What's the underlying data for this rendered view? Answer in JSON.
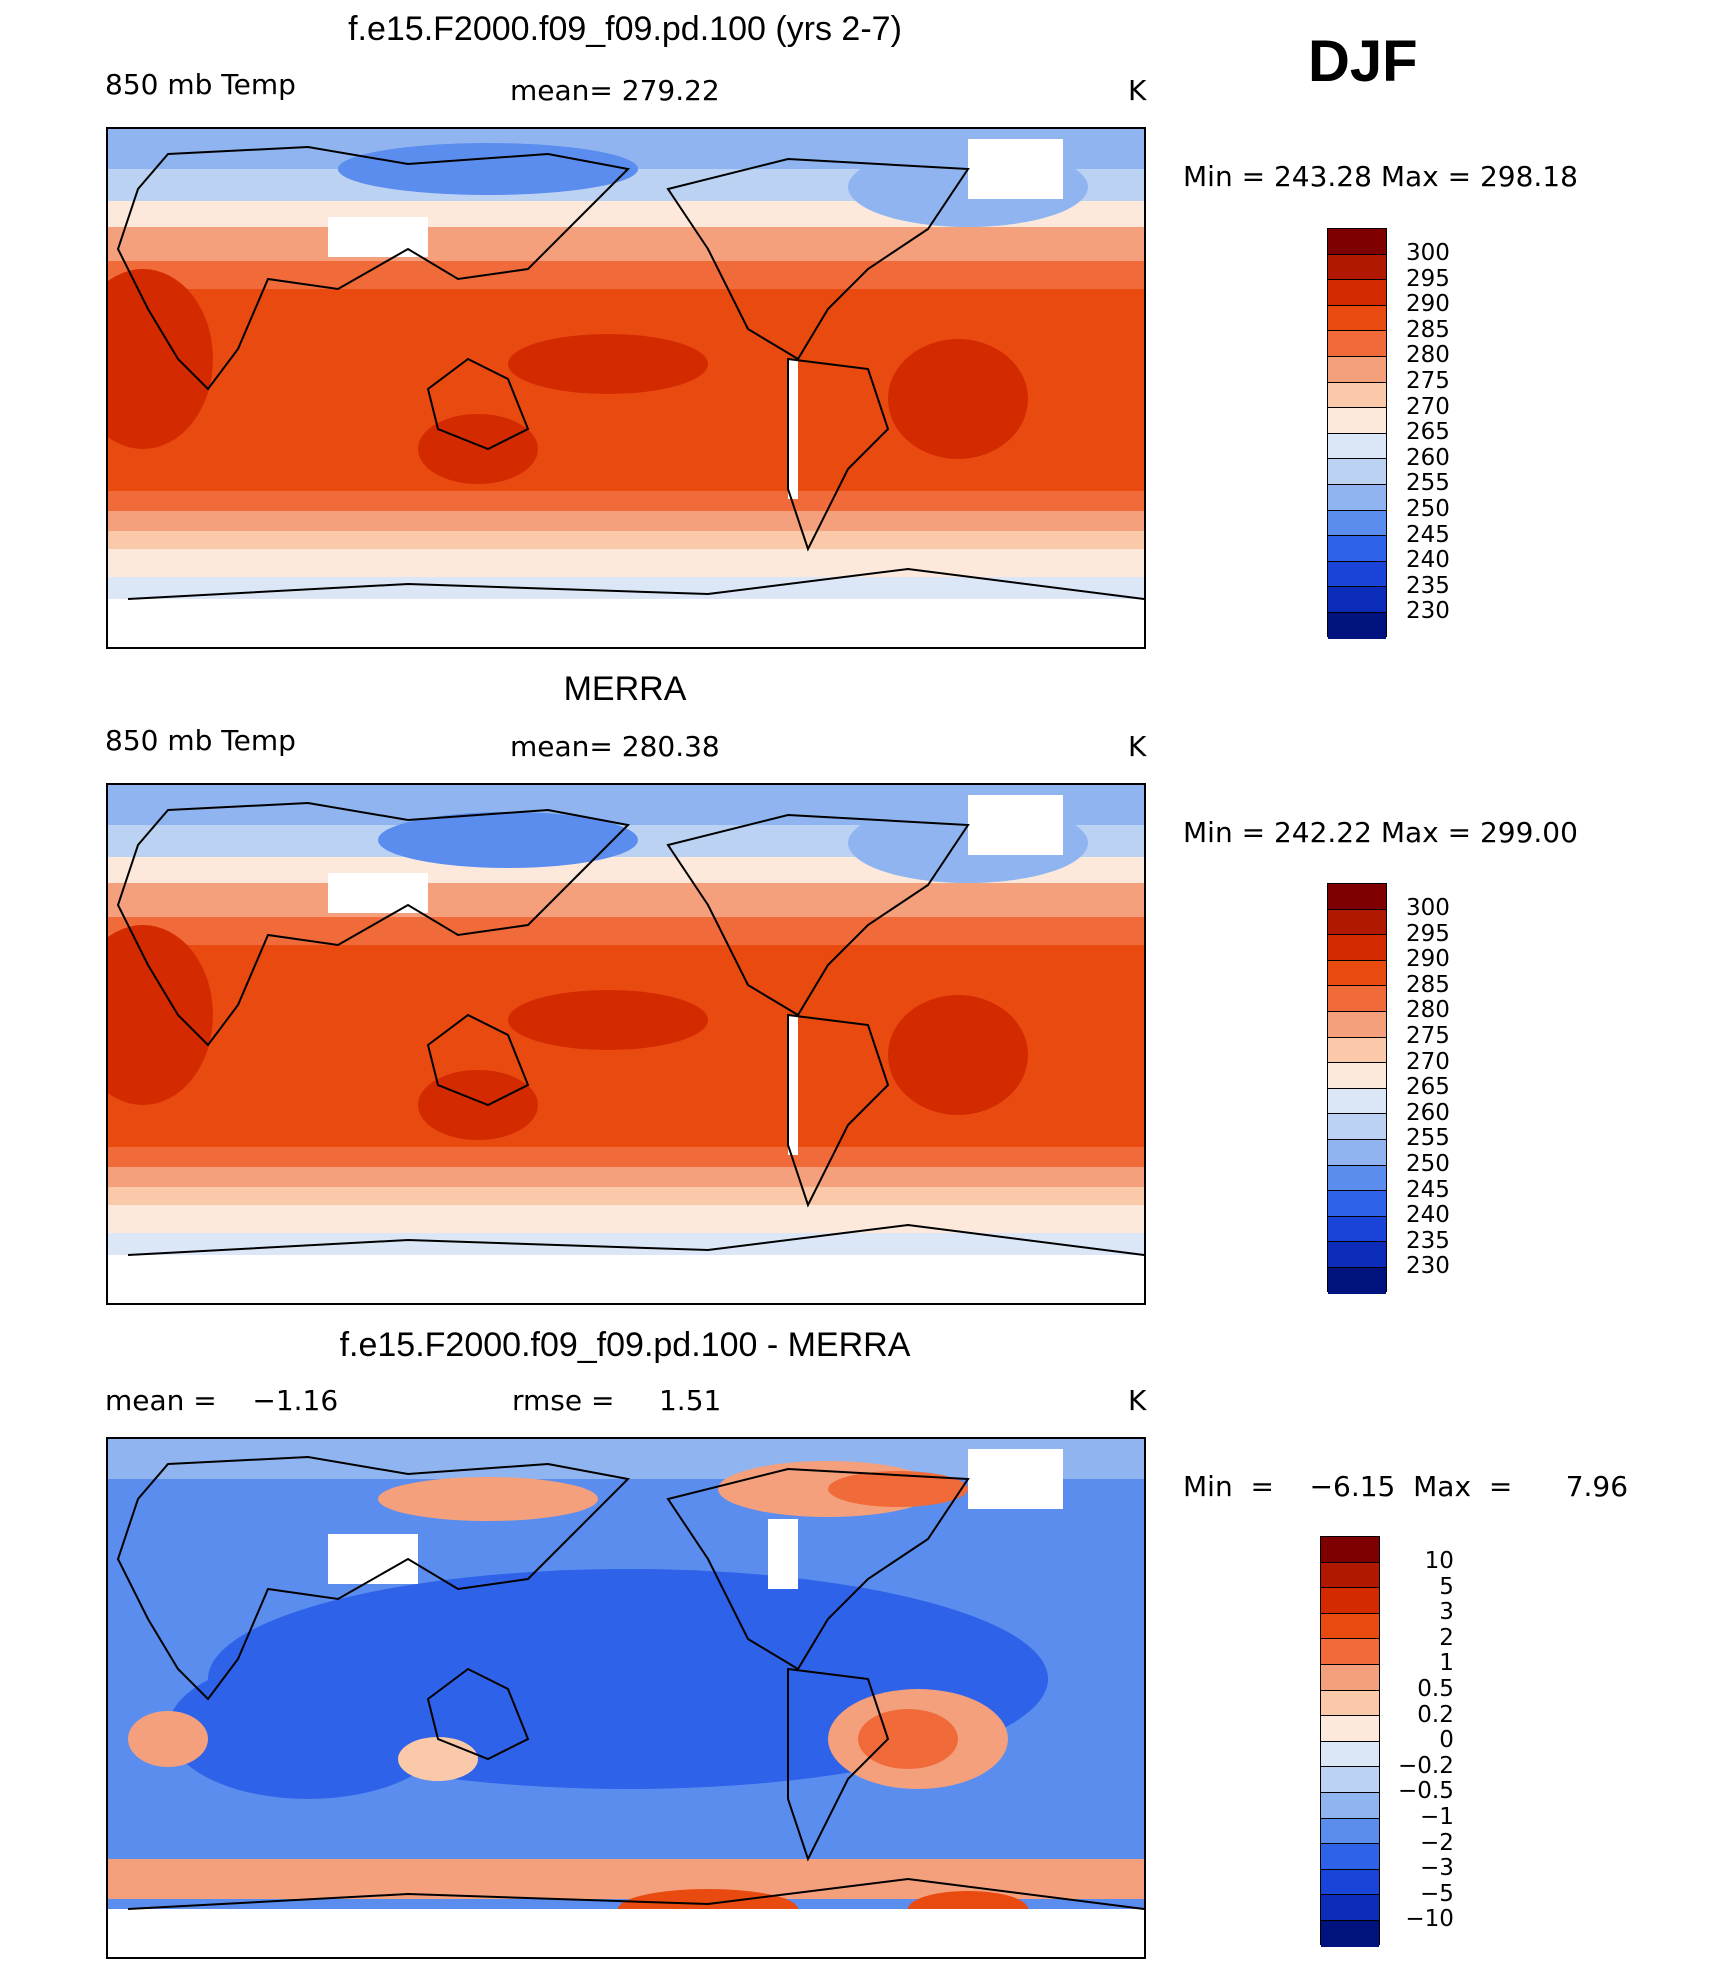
{
  "season": "DJF",
  "colors": {
    "temp_scale": [
      "#7f0000",
      "#b01800",
      "#d42a00",
      "#e84a10",
      "#f06a3a",
      "#f4a07c",
      "#f9c9aa",
      "#fde9dc",
      "#dbe7f7",
      "#bcd2f2",
      "#8fb4ef",
      "#5b8def",
      "#2e62e8",
      "#1a44d8",
      "#0b2cb8",
      "#00127e"
    ],
    "diff_scale": [
      "#7f0000",
      "#b01800",
      "#d42a00",
      "#e84a10",
      "#f06a3a",
      "#f4a07c",
      "#f9c9aa",
      "#fde9dc",
      "#dbe7f7",
      "#bcd2f2",
      "#8fb4ef",
      "#5b8def",
      "#2e62e8",
      "#1a44d8",
      "#0b2cb8",
      "#00127e"
    ]
  },
  "panels": [
    {
      "title": "f.e15.F2000.f09_f09.pd.100 (yrs 2-7)",
      "left_label": "850 mb Temp",
      "center_label": "mean= 279.22",
      "units": "K",
      "minmax": "Min  =  243.28  Max  =  298.18",
      "levels": [
        "300",
        "295",
        "290",
        "285",
        "280",
        "275",
        "270",
        "265",
        "260",
        "255",
        "250",
        "245",
        "240",
        "235",
        "230"
      ]
    },
    {
      "title": "MERRA",
      "left_label": "850 mb Temp",
      "center_label": "mean= 280.38",
      "units": "K",
      "minmax": "Min  =  242.22  Max  =  299.00",
      "levels": [
        "300",
        "295",
        "290",
        "285",
        "280",
        "275",
        "270",
        "265",
        "260",
        "255",
        "250",
        "245",
        "240",
        "235",
        "230"
      ]
    },
    {
      "title": "f.e15.F2000.f09_f09.pd.100 - MERRA",
      "left_label": "mean =    −1.16",
      "center_label": "rmse =     1.51",
      "units": "K",
      "minmax": "Min  =    −6.15  Max  =      7.96",
      "levels": [
        "10",
        "5",
        "3",
        "2",
        "1",
        "0.5",
        "0.2",
        "0",
        "−0.2",
        "−0.5",
        "−1",
        "−2",
        "−3",
        "−5",
        "−10"
      ]
    }
  ]
}
